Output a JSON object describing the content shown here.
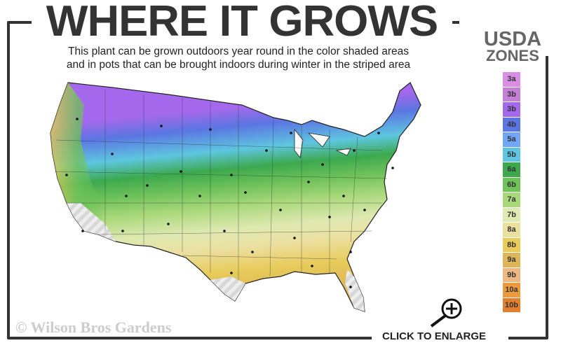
{
  "header": {
    "title": "WHERE IT GROWS",
    "subtitle_line1": "This plant can be grown outdoors year round in the color shaded areas",
    "subtitle_line2": "and in pots that can be brought indoors during winter in the striped area"
  },
  "legend": {
    "title_line1": "USDA",
    "title_line2": "ZONES",
    "zones": [
      {
        "label": "3a",
        "color": "#d98ee6"
      },
      {
        "label": "3b",
        "color": "#c47fd6"
      },
      {
        "label": "3b",
        "color": "#a468ec"
      },
      {
        "label": "4b",
        "color": "#5b76e2"
      },
      {
        "label": "5a",
        "color": "#72a6f6"
      },
      {
        "label": "5b",
        "color": "#5ec6e0"
      },
      {
        "label": "6a",
        "color": "#3ca94e"
      },
      {
        "label": "6b",
        "color": "#70c25a"
      },
      {
        "label": "7a",
        "color": "#a8d87a"
      },
      {
        "label": "7b",
        "color": "#dfe9b2"
      },
      {
        "label": "8a",
        "color": "#ece0a0"
      },
      {
        "label": "8b",
        "color": "#e8cb5a"
      },
      {
        "label": "9a",
        "color": "#dcb658"
      },
      {
        "label": "9b",
        "color": "#efb882"
      },
      {
        "label": "10a",
        "color": "#ec9a3c"
      },
      {
        "label": "10b",
        "color": "#e08030"
      }
    ]
  },
  "footer": {
    "copyright": "© Wilson Bros Gardens",
    "enlarge_label": "CLICK TO ENLARGE"
  },
  "map": {
    "icon": "zoom-in-magnifier-icon"
  }
}
